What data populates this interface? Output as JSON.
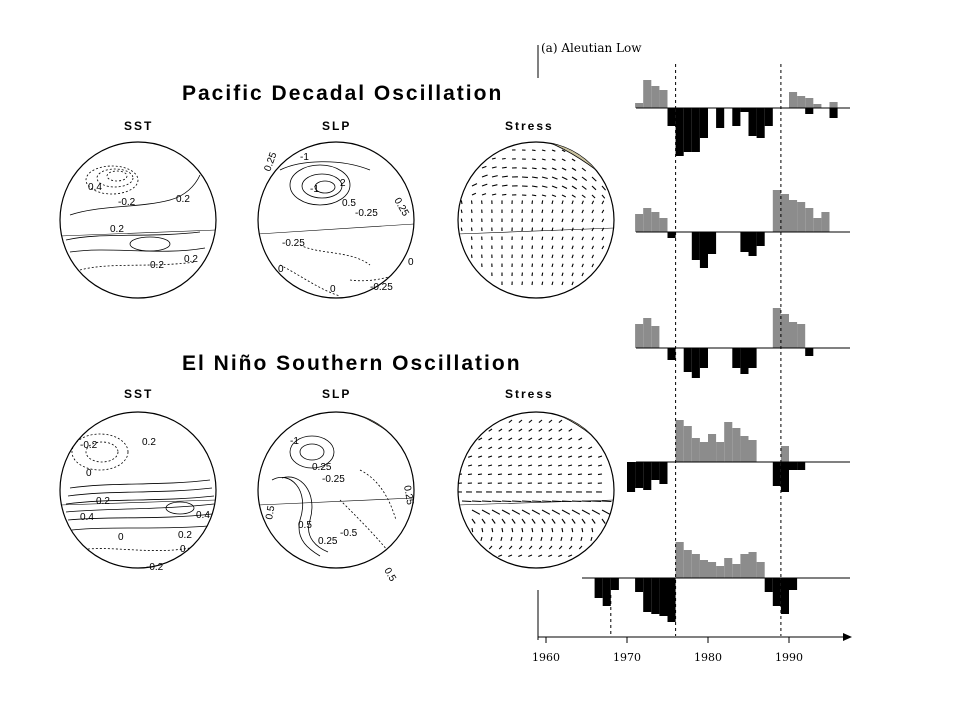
{
  "pdo": {
    "title": "Pacific Decadal Oscillation",
    "panels": [
      "SST",
      "SLP",
      "Stress"
    ],
    "sst_labels": [
      "0.4",
      "-0.2",
      "0.2",
      "0.2",
      "0.2",
      "0.2"
    ],
    "slp_labels": [
      "0.25",
      "-1",
      "-1",
      "2",
      "0.5",
      "-0.25",
      "0.25",
      "-0.25",
      "-0.25",
      "0",
      "0",
      "0"
    ]
  },
  "enso": {
    "title": "El Niño Southern Oscillation",
    "panels": [
      "SST",
      "SLP",
      "Stress"
    ],
    "sst_labels": [
      "0.2",
      "-0.2",
      "0",
      "0.2",
      "0.4",
      "0.4",
      "0",
      "0.2",
      "-0.2",
      "0"
    ],
    "slp_labels": [
      "-1",
      "0.25",
      "-0.25",
      "0.5",
      "0.5",
      "0.25",
      "0.5",
      "-0.5",
      "0.25"
    ]
  },
  "timeseries": {
    "panel_label": "(a) Aleutian Low",
    "x_ticks": [
      "1960",
      "1970",
      "1980",
      "1990"
    ],
    "x_tick_values": [
      1960,
      1970,
      1980,
      1990
    ],
    "regime_shift_years": [
      1968,
      1976,
      1989
    ],
    "colors": {
      "positive": "#8c8c8c",
      "negative": "#000000",
      "land": "#c9c2a0"
    }
  }
}
